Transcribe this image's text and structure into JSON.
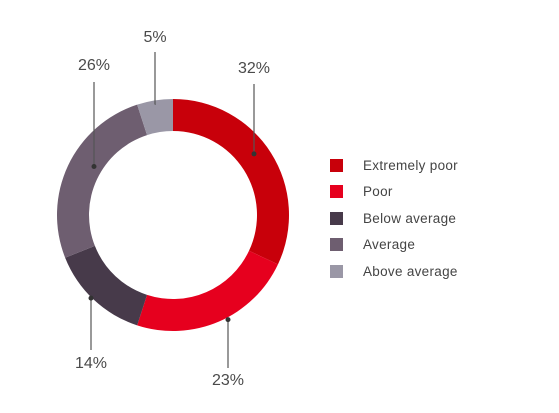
{
  "chart_data": {
    "type": "pie",
    "donut": true,
    "categories": [
      "Extremely poor",
      "Poor",
      "Below average",
      "Average",
      "Above average"
    ],
    "values": [
      32,
      23,
      14,
      26,
      5
    ],
    "value_labels": [
      "32%",
      "23%",
      "14%",
      "26%",
      "5%"
    ],
    "colors": [
      "#c8000a",
      "#e6001e",
      "#473a4a",
      "#6e5e70",
      "#9a97a6"
    ],
    "legend_position": "right",
    "title": ""
  }
}
